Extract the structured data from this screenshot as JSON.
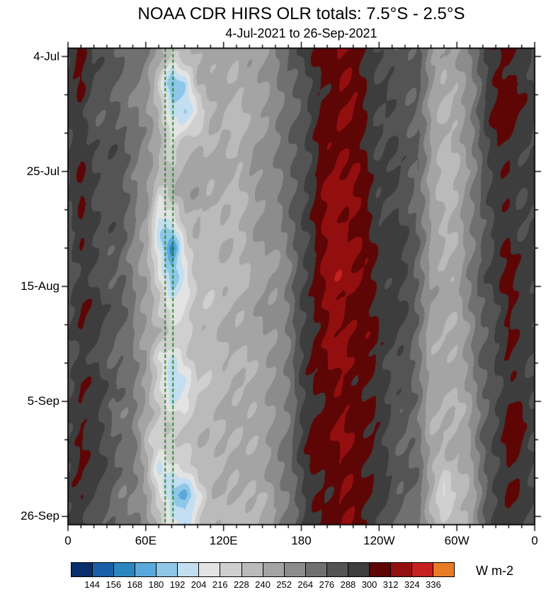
{
  "chart_data": {
    "type": "heatmap",
    "title": "NOAA CDR HIRS OLR totals: 7.5°S - 2.5°S",
    "subtitle": "4-Jul-2021 to 26-Sep-2021",
    "x_axis": {
      "range_deg": [
        0,
        360
      ],
      "tick_positions_deg": [
        0,
        60,
        120,
        180,
        240,
        300,
        360
      ],
      "tick_labels": [
        "0",
        "60E",
        "120E",
        "180",
        "120W",
        "60W",
        "0"
      ],
      "minor_tick_step_deg": 10
    },
    "y_axis": {
      "range_days": [
        0,
        84
      ],
      "tick_positions_days": [
        0,
        21,
        42,
        63,
        84
      ],
      "tick_labels": [
        "4-Jul",
        "25-Jul",
        "15-Aug",
        "5-Sep",
        "26-Sep"
      ],
      "minor_tick_step_days": 7
    },
    "colorbar": {
      "label": "W m-2",
      "levels": [
        144,
        156,
        168,
        180,
        192,
        204,
        216,
        228,
        240,
        252,
        264,
        276,
        288,
        300,
        312,
        324,
        336
      ],
      "colors": [
        "#0a2d6e",
        "#1b5fa8",
        "#2e86c1",
        "#5aa9dc",
        "#8ec7e8",
        "#c2def0",
        "#e3e3e3",
        "#cfcfcf",
        "#bababa",
        "#a4a4a4",
        "#8c8c8c",
        "#707070",
        "#545454",
        "#3d3d3d",
        "#5e0505",
        "#930f0f",
        "#c62020",
        "#e87b25"
      ]
    },
    "reference_lines": {
      "color": "#0a7d0a",
      "style": "dashed",
      "longitudes_deg": [
        75,
        81
      ]
    },
    "grid": {
      "lon_deg": [
        0,
        10,
        20,
        30,
        40,
        50,
        60,
        70,
        80,
        90,
        100,
        110,
        120,
        130,
        140,
        150,
        160,
        170,
        180,
        190,
        200,
        210,
        220,
        230,
        240,
        250,
        260,
        270,
        280,
        290,
        300,
        310,
        320,
        330,
        340,
        350
      ],
      "day": [
        0,
        5,
        10,
        15,
        20,
        25,
        30,
        35,
        40,
        45,
        50,
        55,
        60,
        65,
        70,
        75,
        80,
        85
      ],
      "olr_w_m2": [
        [
          288,
          306,
          290,
          282,
          276,
          268,
          258,
          248,
          224,
          238,
          246,
          242,
          248,
          244,
          248,
          252,
          258,
          272,
          288,
          300,
          308,
          314,
          308,
          298,
          288,
          286,
          282,
          276,
          252,
          246,
          250,
          266,
          284,
          296,
          306,
          296
        ],
        [
          286,
          300,
          288,
          280,
          274,
          266,
          256,
          230,
          180,
          196,
          240,
          238,
          244,
          240,
          246,
          250,
          256,
          270,
          286,
          298,
          306,
          312,
          306,
          298,
          290,
          284,
          280,
          274,
          250,
          242,
          246,
          262,
          282,
          298,
          308,
          298
        ],
        [
          290,
          296,
          286,
          280,
          274,
          266,
          254,
          240,
          200,
          184,
          210,
          236,
          242,
          238,
          244,
          250,
          258,
          268,
          284,
          296,
          304,
          310,
          306,
          300,
          292,
          286,
          280,
          272,
          248,
          242,
          244,
          260,
          284,
          298,
          308,
          298
        ],
        [
          288,
          294,
          288,
          282,
          276,
          268,
          256,
          244,
          216,
          228,
          238,
          240,
          244,
          240,
          246,
          252,
          260,
          270,
          286,
          298,
          306,
          312,
          308,
          302,
          292,
          288,
          282,
          274,
          248,
          240,
          242,
          258,
          282,
          298,
          306,
          298
        ],
        [
          286,
          298,
          290,
          284,
          278,
          270,
          260,
          248,
          232,
          240,
          244,
          242,
          246,
          242,
          248,
          254,
          262,
          272,
          288,
          300,
          308,
          314,
          310,
          302,
          292,
          286,
          280,
          272,
          246,
          238,
          240,
          256,
          280,
          294,
          300,
          292
        ],
        [
          290,
          306,
          292,
          284,
          278,
          270,
          258,
          220,
          236,
          242,
          246,
          240,
          244,
          240,
          246,
          252,
          260,
          272,
          288,
          300,
          310,
          316,
          312,
          304,
          294,
          288,
          282,
          274,
          248,
          240,
          242,
          256,
          278,
          292,
          298,
          290
        ],
        [
          288,
          302,
          290,
          282,
          276,
          266,
          252,
          196,
          208,
          232,
          242,
          238,
          242,
          238,
          244,
          250,
          258,
          270,
          288,
          302,
          312,
          316,
          314,
          306,
          294,
          288,
          282,
          274,
          248,
          240,
          242,
          256,
          278,
          292,
          300,
          292
        ],
        [
          286,
          296,
          288,
          280,
          274,
          264,
          250,
          204,
          164,
          216,
          238,
          236,
          240,
          236,
          242,
          248,
          256,
          268,
          286,
          302,
          314,
          318,
          316,
          308,
          296,
          290,
          284,
          276,
          250,
          242,
          244,
          258,
          280,
          294,
          302,
          294
        ],
        [
          288,
          294,
          286,
          280,
          274,
          264,
          252,
          214,
          180,
          200,
          230,
          234,
          238,
          234,
          240,
          246,
          254,
          266,
          284,
          300,
          312,
          318,
          316,
          308,
          298,
          292,
          286,
          278,
          252,
          244,
          246,
          260,
          282,
          296,
          306,
          298
        ],
        [
          290,
          304,
          290,
          282,
          276,
          266,
          254,
          226,
          204,
          216,
          234,
          236,
          240,
          236,
          242,
          248,
          256,
          268,
          286,
          300,
          312,
          316,
          314,
          306,
          296,
          290,
          284,
          276,
          250,
          242,
          244,
          258,
          280,
          294,
          304,
          296
        ],
        [
          288,
          298,
          288,
          282,
          276,
          268,
          256,
          238,
          226,
          222,
          236,
          238,
          242,
          238,
          244,
          250,
          258,
          270,
          288,
          302,
          312,
          316,
          314,
          306,
          296,
          290,
          282,
          274,
          248,
          240,
          242,
          256,
          278,
          292,
          300,
          292
        ],
        [
          286,
          294,
          286,
          280,
          274,
          266,
          254,
          210,
          196,
          220,
          236,
          236,
          240,
          236,
          242,
          248,
          256,
          268,
          286,
          300,
          310,
          316,
          312,
          304,
          294,
          288,
          282,
          274,
          248,
          240,
          242,
          256,
          278,
          292,
          298,
          290
        ],
        [
          288,
          302,
          290,
          282,
          276,
          266,
          252,
          218,
          188,
          206,
          230,
          234,
          238,
          234,
          240,
          246,
          254,
          266,
          284,
          298,
          308,
          314,
          310,
          302,
          292,
          286,
          280,
          272,
          246,
          238,
          240,
          254,
          276,
          290,
          298,
          292
        ],
        [
          286,
          296,
          288,
          280,
          274,
          266,
          254,
          228,
          212,
          222,
          234,
          236,
          240,
          236,
          242,
          248,
          256,
          268,
          286,
          298,
          306,
          312,
          308,
          300,
          290,
          284,
          278,
          270,
          244,
          236,
          238,
          252,
          274,
          290,
          302,
          296
        ],
        [
          290,
          306,
          292,
          284,
          278,
          268,
          230,
          216,
          226,
          232,
          240,
          238,
          242,
          238,
          244,
          250,
          258,
          270,
          288,
          300,
          308,
          314,
          310,
          302,
          292,
          286,
          280,
          272,
          246,
          238,
          240,
          252,
          276,
          292,
          304,
          296
        ],
        [
          288,
          300,
          290,
          282,
          276,
          266,
          246,
          198,
          210,
          226,
          238,
          238,
          242,
          238,
          244,
          250,
          258,
          270,
          288,
          300,
          308,
          314,
          310,
          302,
          292,
          286,
          280,
          272,
          244,
          224,
          236,
          250,
          274,
          292,
          302,
          294
        ],
        [
          286,
          296,
          288,
          280,
          274,
          264,
          250,
          220,
          184,
          178,
          210,
          232,
          238,
          234,
          240,
          246,
          254,
          266,
          284,
          298,
          306,
          312,
          308,
          300,
          290,
          284,
          278,
          270,
          242,
          210,
          232,
          248,
          272,
          290,
          300,
          292
        ],
        [
          288,
          294,
          286,
          280,
          274,
          264,
          252,
          232,
          206,
          196,
          224,
          234,
          238,
          234,
          240,
          246,
          254,
          266,
          284,
          296,
          304,
          310,
          306,
          298,
          288,
          282,
          276,
          268,
          240,
          228,
          234,
          246,
          272,
          288,
          298,
          290
        ]
      ]
    }
  }
}
